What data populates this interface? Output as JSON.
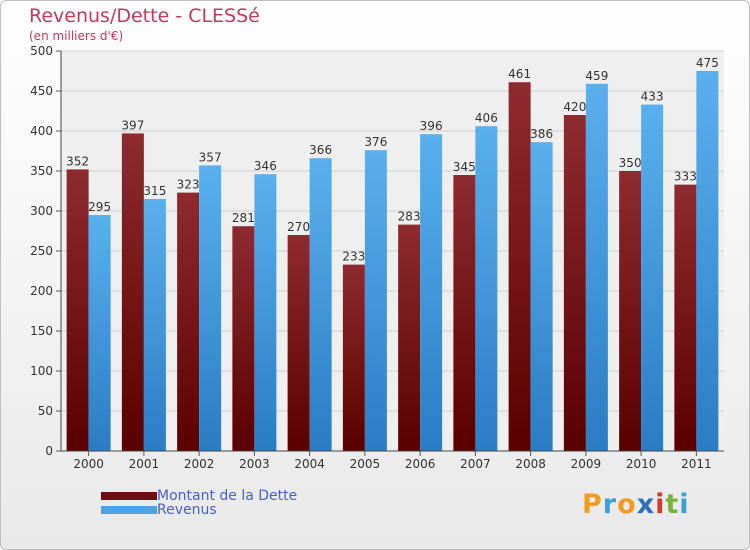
{
  "header": {
    "title": "Revenus/Dette - CLESSé",
    "subtitle": "(en milliers d'€)"
  },
  "legend": {
    "items": [
      {
        "label": "Montant de la Dette",
        "color": "#6b0f14"
      },
      {
        "label": "Revenus",
        "color": "#4aa3e6"
      }
    ]
  },
  "logo": {
    "letters": [
      "P",
      "r",
      "o",
      "x",
      "i",
      "t",
      "i"
    ],
    "colors": [
      "#f39b1d",
      "#3aa0d8",
      "#f39b1d",
      "#2a6fc0",
      "#d03a2a",
      "#7bb33a",
      "#3aa0d8"
    ]
  },
  "chart_data": {
    "type": "bar",
    "categories": [
      "2000",
      "2001",
      "2002",
      "2003",
      "2004",
      "2005",
      "2006",
      "2007",
      "2008",
      "2009",
      "2010",
      "2011"
    ],
    "series": [
      {
        "name": "Montant de la Dette",
        "color": "#7a1a1e",
        "values": [
          352,
          397,
          323,
          281,
          270,
          233,
          283,
          345,
          461,
          420,
          350,
          333
        ]
      },
      {
        "name": "Revenus",
        "color": "#4aa3e6",
        "values": [
          295,
          315,
          357,
          346,
          366,
          376,
          396,
          406,
          386,
          459,
          433,
          475
        ]
      }
    ],
    "title": "Revenus/Dette - CLESSé",
    "ylim": [
      0,
      500
    ],
    "yticks": [
      0,
      50,
      100,
      150,
      200,
      250,
      300,
      350,
      400,
      450,
      500
    ],
    "grid": true
  }
}
